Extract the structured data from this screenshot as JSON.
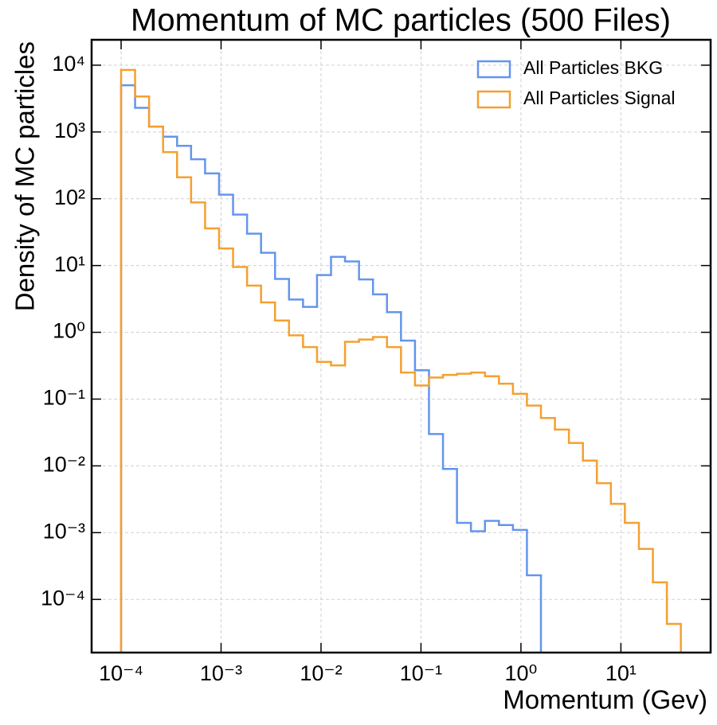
{
  "chart_data": {
    "type": "histogram",
    "title": "Momentum of MC particles (500 Files)",
    "x_label": "Momentum (Gev)",
    "y_label": "Density of MC particles",
    "xscale": "log",
    "yscale": "log",
    "bins": [
      0.0001,
      0.000138,
      0.0001905,
      0.000263,
      0.0003631,
      0.0005012,
      0.0006918,
      0.000955,
      0.001318,
      0.00182,
      0.002512,
      0.003467,
      0.004786,
      0.006607,
      0.00912,
      0.01259,
      0.01738,
      0.02399,
      0.03311,
      0.04571,
      0.0631,
      0.0871,
      0.1202,
      0.166,
      0.2291,
      0.3162,
      0.4365,
      0.6026,
      0.8318,
      1.148,
      1.585,
      2.188,
      3.02,
      4.169,
      5.754,
      7.943,
      10.96,
      15.14,
      20.89,
      28.84,
      39.81
    ],
    "series": [
      {
        "name": "All Particles BKG",
        "color": "#6495ed",
        "values": [
          5000,
          2300,
          1200,
          850,
          620,
          390,
          240,
          115,
          58,
          30,
          15.5,
          6.3,
          3.1,
          2.4,
          7.2,
          13.5,
          11.5,
          6.2,
          3.7,
          2.0,
          0.75,
          0.27,
          0.03,
          0.009,
          0.0014,
          0.00105,
          0.0015,
          0.0013,
          0.0011,
          0.00023,
          0,
          0,
          0,
          0,
          0,
          0,
          0,
          0,
          0,
          0
        ]
      },
      {
        "name": "All Particles Signal",
        "color": "#f4a031",
        "values": [
          8500,
          3400,
          1200,
          500,
          210,
          88,
          36,
          18,
          9.5,
          5,
          2.8,
          1.5,
          0.9,
          0.6,
          0.36,
          0.32,
          0.72,
          0.78,
          0.85,
          0.6,
          0.25,
          0.16,
          0.21,
          0.23,
          0.24,
          0.25,
          0.22,
          0.17,
          0.12,
          0.08,
          0.052,
          0.035,
          0.022,
          0.012,
          0.0055,
          0.0027,
          0.0014,
          0.00057,
          0.00018,
          4.3e-05
        ]
      }
    ],
    "xlim": [
      5.07e-05,
      79
    ],
    "ylim": [
      1.6e-05,
      24000
    ],
    "xticks": [
      {
        "value": 0.0001,
        "label": "10⁻⁴"
      },
      {
        "value": 0.001,
        "label": "10⁻³"
      },
      {
        "value": 0.01,
        "label": "10⁻²"
      },
      {
        "value": 0.1,
        "label": "10⁻¹"
      },
      {
        "value": 1,
        "label": "10⁰"
      },
      {
        "value": 10,
        "label": "10¹"
      }
    ],
    "yticks": [
      {
        "value": 0.0001,
        "label": "10⁻⁴"
      },
      {
        "value": 0.001,
        "label": "10⁻³"
      },
      {
        "value": 0.01,
        "label": "10⁻²"
      },
      {
        "value": 0.1,
        "label": "10⁻¹"
      },
      {
        "value": 1,
        "label": "10⁰"
      },
      {
        "value": 10,
        "label": "10¹"
      },
      {
        "value": 100,
        "label": "10²"
      },
      {
        "value": 1000,
        "label": "10³"
      },
      {
        "value": 10000,
        "label": "10⁴"
      }
    ],
    "grid": true,
    "legend": "upper right"
  }
}
